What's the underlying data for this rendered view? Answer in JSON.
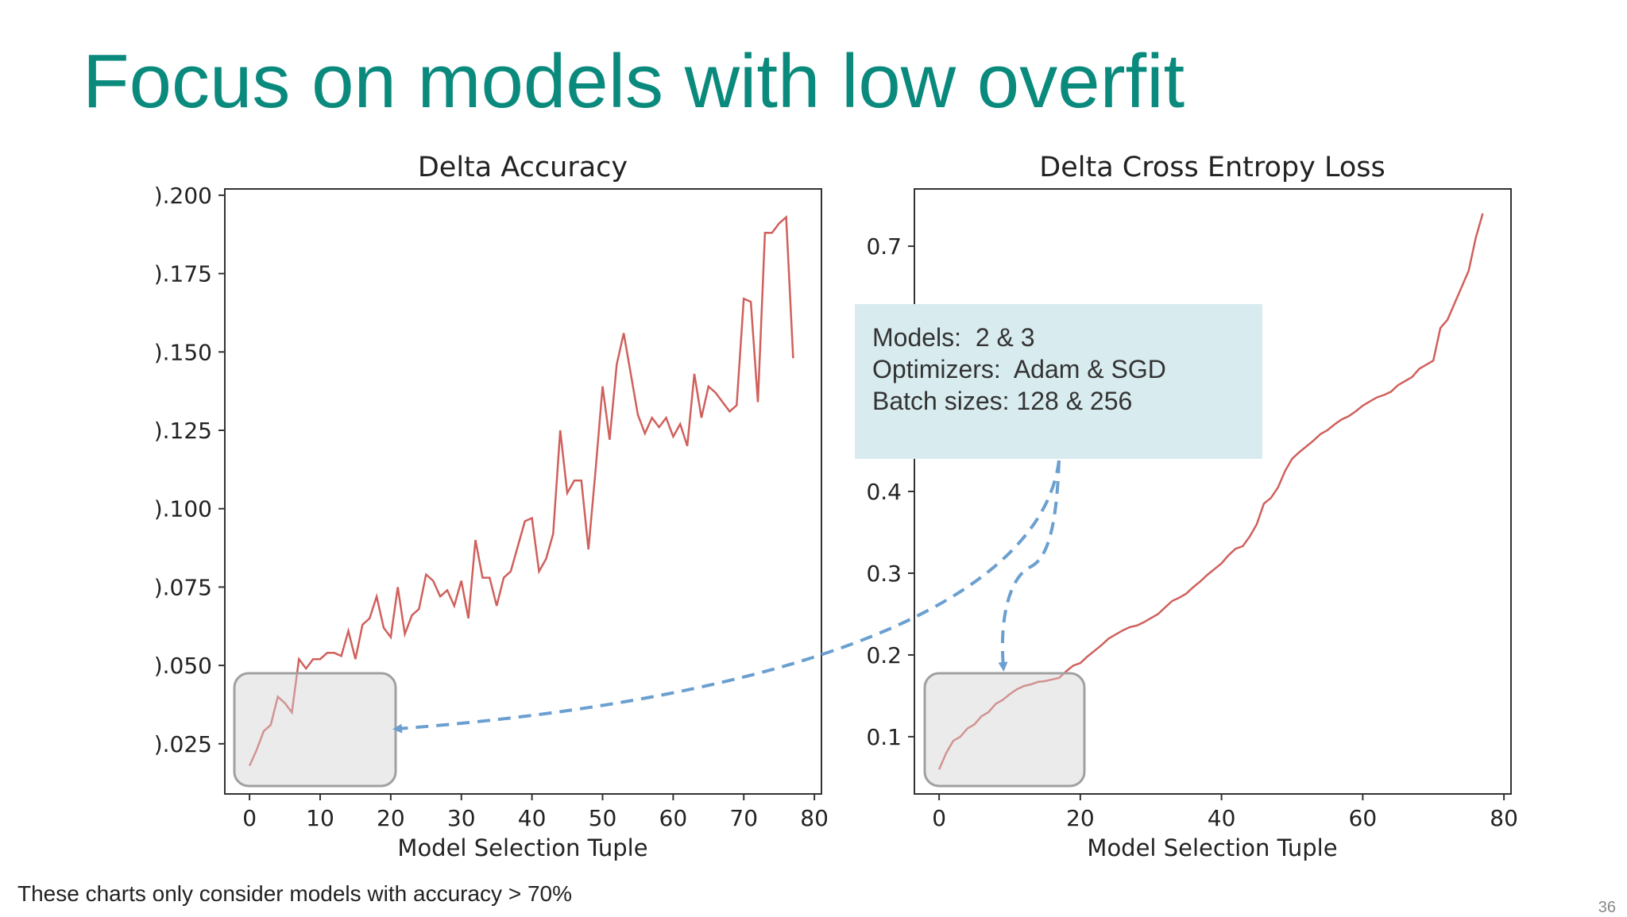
{
  "slide": {
    "title": "Focus on models with low overfit",
    "footnote": "These charts only consider models with accuracy > 70%",
    "page_number": "36"
  },
  "callout": {
    "lines": [
      "Models:  2 & 3",
      "Optimizers:  Adam & SGD",
      "Batch sizes: 128 & 256"
    ]
  },
  "colors": {
    "title": "#0a8a7d",
    "series": "#d0605c",
    "callout_bg": "#d8ecef",
    "arrow": "#6a9fd0",
    "highlight": "#a0a0a0"
  },
  "chart_data": [
    {
      "type": "line",
      "title": "Delta Accuracy",
      "xlabel": "Model Selection Tuple",
      "ylabel": "",
      "xlim": [
        -3.5,
        81
      ],
      "ylim": [
        0.009,
        0.202
      ],
      "xticks": [
        0,
        10,
        20,
        30,
        40,
        50,
        60,
        70,
        80
      ],
      "yticks": [
        0.025,
        0.05,
        0.075,
        0.1,
        0.125,
        0.15,
        0.175,
        0.2
      ],
      "ytick_labels": [
        ").025",
        ").050",
        ").075",
        ").100",
        ").125",
        ").150",
        ").175",
        ").200"
      ],
      "grid": false,
      "series": [
        {
          "name": "delta_accuracy",
          "x": [
            0,
            1,
            2,
            3,
            4,
            5,
            6,
            7,
            8,
            9,
            10,
            11,
            12,
            13,
            14,
            15,
            16,
            17,
            18,
            19,
            20,
            21,
            22,
            23,
            24,
            25,
            26,
            27,
            28,
            29,
            30,
            31,
            32,
            33,
            34,
            35,
            36,
            37,
            38,
            39,
            40,
            41,
            42,
            43,
            44,
            45,
            46,
            47,
            48,
            49,
            50,
            51,
            52,
            53,
            54,
            55,
            56,
            57,
            58,
            59,
            60,
            61,
            62,
            63,
            64,
            65,
            66,
            67,
            68,
            69,
            70,
            71,
            72,
            73,
            74,
            75,
            76,
            77
          ],
          "values": [
            0.018,
            0.023,
            0.029,
            0.031,
            0.04,
            0.038,
            0.035,
            0.052,
            0.049,
            0.052,
            0.052,
            0.054,
            0.054,
            0.053,
            0.061,
            0.052,
            0.063,
            0.065,
            0.072,
            0.062,
            0.059,
            0.075,
            0.06,
            0.066,
            0.068,
            0.079,
            0.077,
            0.072,
            0.074,
            0.069,
            0.077,
            0.065,
            0.09,
            0.078,
            0.078,
            0.069,
            0.078,
            0.08,
            0.088,
            0.096,
            0.097,
            0.08,
            0.084,
            0.092,
            0.125,
            0.105,
            0.109,
            0.109,
            0.087,
            0.112,
            0.139,
            0.122,
            0.146,
            0.156,
            0.143,
            0.13,
            0.124,
            0.129,
            0.126,
            0.129,
            0.123,
            0.127,
            0.12,
            0.143,
            0.129,
            0.139,
            0.137,
            0.134,
            0.131,
            0.133,
            0.167,
            0.166,
            0.134,
            0.188,
            0.188,
            0.191,
            0.193,
            0.148
          ]
        }
      ]
    },
    {
      "type": "line",
      "title": "Delta Cross Entropy Loss",
      "xlabel": "Model Selection Tuple",
      "ylabel": "",
      "xlim": [
        -3.5,
        81
      ],
      "ylim": [
        0.03,
        0.77
      ],
      "xticks": [
        0,
        20,
        40,
        60,
        80
      ],
      "yticks": [
        0.1,
        0.2,
        0.3,
        0.4,
        0.7
      ],
      "ytick_labels": [
        "0.1",
        "0.2",
        "0.3",
        "0.4",
        "0.7"
      ],
      "grid": false,
      "series": [
        {
          "name": "delta_cross_entropy_loss",
          "x": [
            0,
            1,
            2,
            3,
            4,
            5,
            6,
            7,
            8,
            9,
            10,
            11,
            12,
            13,
            14,
            15,
            16,
            17,
            18,
            19,
            20,
            21,
            22,
            23,
            24,
            25,
            26,
            27,
            28,
            29,
            30,
            31,
            32,
            33,
            34,
            35,
            36,
            37,
            38,
            39,
            40,
            41,
            42,
            43,
            44,
            45,
            46,
            47,
            48,
            49,
            50,
            51,
            52,
            53,
            54,
            55,
            56,
            57,
            58,
            59,
            60,
            61,
            62,
            63,
            64,
            65,
            66,
            67,
            68,
            69,
            70,
            71,
            72,
            73,
            74,
            75,
            76,
            77
          ],
          "values": [
            0.06,
            0.08,
            0.095,
            0.1,
            0.11,
            0.115,
            0.125,
            0.13,
            0.14,
            0.145,
            0.152,
            0.158,
            0.162,
            0.164,
            0.167,
            0.168,
            0.17,
            0.172,
            0.18,
            0.187,
            0.19,
            0.198,
            0.205,
            0.212,
            0.22,
            0.225,
            0.23,
            0.234,
            0.236,
            0.24,
            0.245,
            0.25,
            0.258,
            0.266,
            0.27,
            0.275,
            0.283,
            0.29,
            0.298,
            0.305,
            0.312,
            0.322,
            0.33,
            0.333,
            0.345,
            0.36,
            0.385,
            0.392,
            0.405,
            0.425,
            0.44,
            0.448,
            0.455,
            0.462,
            0.47,
            0.475,
            0.482,
            0.488,
            0.492,
            0.498,
            0.505,
            0.51,
            0.515,
            0.518,
            0.522,
            0.53,
            0.535,
            0.54,
            0.55,
            0.555,
            0.56,
            0.6,
            0.61,
            0.63,
            0.65,
            0.67,
            0.71,
            0.74
          ]
        }
      ]
    }
  ]
}
